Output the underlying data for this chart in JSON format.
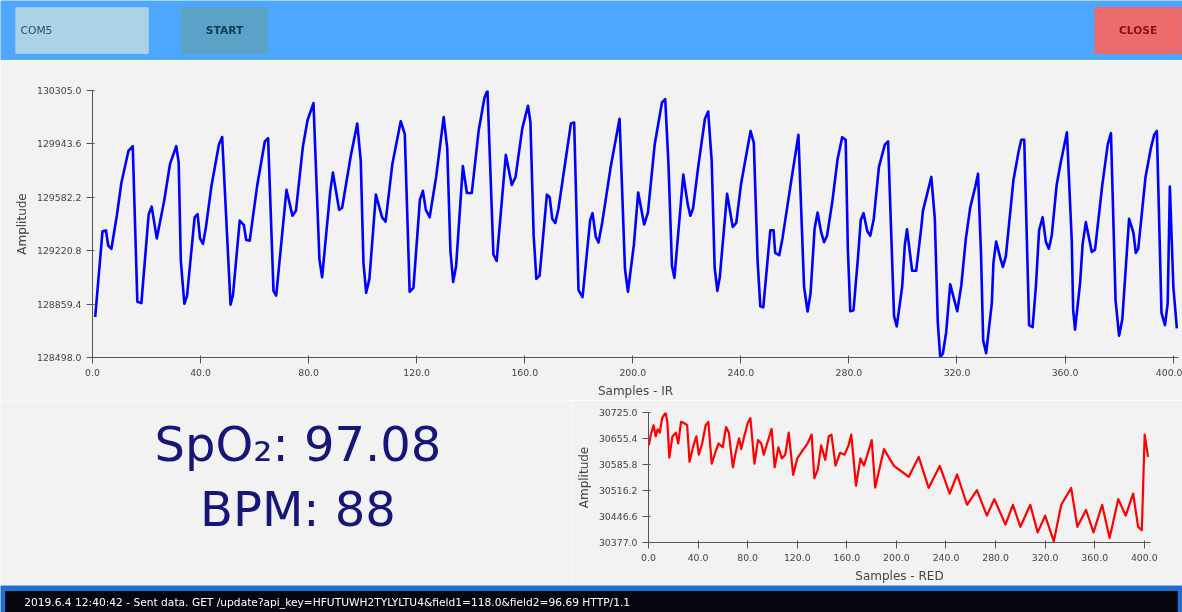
{
  "chart_data": [
    {
      "type": "other",
      "annotations": [
        "COM5",
        "START",
        "CLOSE"
      ]
    },
    {
      "type": "line",
      "xlabel": "Samples - IR",
      "ylabel": "Amplitude",
      "line_style": "solid",
      "xlim": [
        0,
        402
      ],
      "ylim": [
        128498,
        130305
      ],
      "xticks": [
        {
          "value": 0,
          "label": "0.0"
        },
        {
          "value": 40,
          "label": "40.0"
        },
        {
          "value": 80,
          "label": "80.0"
        },
        {
          "value": 120,
          "label": "120.0"
        },
        {
          "value": 160,
          "label": "160.0"
        },
        {
          "value": 200,
          "label": "200.0"
        },
        {
          "value": 240,
          "label": "240.0"
        },
        {
          "value": 280,
          "label": "280.0"
        },
        {
          "value": 320,
          "label": "320.0"
        },
        {
          "value": 360,
          "label": "360.0"
        },
        {
          "value": 400,
          "label": "400.0"
        }
      ],
      "yticks": [
        {
          "value": 128498,
          "label": "128498.0"
        },
        {
          "value": 128859.4,
          "label": "128859.4"
        },
        {
          "value": 129220.8,
          "label": "129220.8"
        },
        {
          "value": 129582.2,
          "label": "129582.2"
        },
        {
          "value": 129943.6,
          "label": "129943.6"
        },
        {
          "value": 130305,
          "label": "130305.0"
        }
      ],
      "series": [
        {
          "color": "#0000ff",
          "x": [
            1,
            3.7,
            5,
            5.8,
            7,
            9,
            10.7,
            13.3,
            14.9,
            16.6,
            18.1,
            20.8,
            21.9,
            23.8,
            26.5,
            28.7,
            31,
            31.9,
            32.7,
            34,
            35,
            37.8,
            38.9,
            39.8,
            40.9,
            42,
            44,
            46.8,
            48,
            51.1,
            52,
            54.5,
            56,
            56.9,
            58.2,
            61,
            63.8,
            65,
            67,
            68,
            71.8,
            74,
            75.3,
            77.9,
            79.6,
            81.8,
            84,
            85,
            88,
            89,
            91.3,
            92.4,
            95.6,
            98,
            99.3,
            100.3,
            101.3,
            102.5,
            104.9,
            107.2,
            108.5,
            111,
            114.1,
            115.6,
            117.4,
            118.8,
            121.2,
            122.3,
            123.4,
            124.8,
            127.2,
            130,
            131.3,
            132.5,
            133.5,
            134.6,
            137.1,
            138.6,
            140.4,
            142.9,
            145.1,
            146.2,
            148.4,
            149.6,
            153,
            155.2,
            156.6,
            159.1,
            161.2,
            162.1,
            163.3,
            164.3,
            165.5,
            168.2,
            169.2,
            170.2,
            171.3,
            172.5,
            177.1,
            178.3,
            179.9,
            181.4,
            184.2,
            185.1,
            186.3,
            187.3,
            188.7,
            191.8,
            195.1,
            197.1,
            198.2,
            200.4,
            202,
            204.2,
            205.6,
            208.1,
            210.8,
            212,
            213.2,
            214.5,
            215.4,
            218.7,
            220.3,
            221.3,
            222.3,
            224.2,
            226.7,
            227.9,
            229.2,
            230.3,
            231.3,
            232.2,
            234.9,
            237,
            238.3,
            240.1,
            243.6,
            244.8,
            246.2,
            247.2,
            248.3,
            250.9,
            252.1,
            252.7,
            254.2,
            255.4,
            258.5,
            261.3,
            263.4,
            264.7,
            265.8,
            267.3,
            268.4,
            269.7,
            270.8,
            271.9,
            273.8,
            275.8,
            277.5,
            278.8,
            279.6,
            280.5,
            281.7,
            283.3,
            284.4,
            285.4,
            286.8,
            287.9,
            289.2,
            291.1,
            293.3,
            294.5,
            296.7,
            297.7,
            299.7,
            300.7,
            301.5,
            303.4,
            304.9,
            306.8,
            307.4,
            310.5,
            311.8,
            312.9,
            313.8,
            314.8,
            316,
            317.5,
            320.1,
            321.6,
            323.3,
            324.9,
            326.8,
            327.8,
            328.9,
            329.7,
            330.8,
            332.9,
            333.5,
            334.5,
            336,
            337,
            338.1,
            340.9,
            342.8,
            343.8,
            344.9,
            346.7,
            348,
            349.2,
            350.4,
            351.7,
            352.9,
            354,
            355.1,
            356.9,
            358.3,
            360.7,
            362.5,
            363,
            363.7,
            365.6,
            366.5,
            367.7,
            369.9,
            371.1,
            373.8,
            375.8,
            377,
            378.7,
            380,
            381.2,
            383.7,
            385.3,
            386.2,
            387.1,
            389.8,
            391.8,
            393,
            394,
            395.7,
            397,
            398,
            398.8,
            400.1,
            401.4
          ],
          "values": [
            128772,
            129352,
            129358,
            129256,
            129234,
            129457,
            129681,
            129896,
            129928,
            128875,
            128866,
            129468,
            129519,
            129304,
            129556,
            129808,
            129928,
            129819,
            129151,
            128862,
            128915,
            129447,
            129468,
            129304,
            129267,
            129381,
            129655,
            129939,
            129990,
            128855,
            128921,
            129425,
            129396,
            129293,
            129289,
            129666,
            129961,
            129983,
            128949,
            128916,
            129633,
            129458,
            129491,
            129928,
            130104,
            130220,
            129162,
            129041,
            129622,
            129749,
            129497,
            129512,
            129862,
            130081,
            129830,
            129140,
            128936,
            129030,
            129600,
            129446,
            129418,
            129808,
            130097,
            130009,
            128943,
            128969,
            129567,
            129626,
            129497,
            129447,
            129720,
            130125,
            129917,
            129217,
            129009,
            129118,
            129793,
            129611,
            129611,
            130027,
            130257,
            130305,
            129195,
            129151,
            129869,
            129666,
            129720,
            130049,
            130202,
            130093,
            129326,
            129030,
            129052,
            129600,
            129585,
            129436,
            129409,
            129506,
            130082,
            130088,
            128954,
            128906,
            129425,
            129475,
            129315,
            129276,
            129414,
            129786,
            130114,
            129098,
            128943,
            129260,
            129615,
            129398,
            129479,
            129939,
            130224,
            130246,
            129808,
            129118,
            129037,
            129736,
            129538,
            129457,
            129506,
            129786,
            130114,
            130163,
            129830,
            129107,
            128949,
            129041,
            129606,
            129381,
            129409,
            129676,
            130031,
            129950,
            129151,
            128844,
            128838,
            129359,
            129359,
            129206,
            129190,
            129304,
            129676,
            130005,
            128975,
            128809,
            128932,
            129370,
            129479,
            129348,
            129278,
            129322,
            129545,
            129840,
            129989,
            129972,
            129238,
            128811,
            128818,
            129162,
            129431,
            129475,
            129352,
            129322,
            129436,
            129786,
            129939,
            129961,
            128779,
            128709,
            128975,
            129260,
            129365,
            129085,
            129085,
            129381,
            129490,
            129720,
            129436,
            128735,
            128498,
            128527,
            128669,
            128993,
            128811,
            128986,
            129304,
            129512,
            129655,
            129742,
            129195,
            128614,
            128527,
            128866,
            129140,
            129282,
            129173,
            129111,
            129184,
            129698,
            129891,
            129972,
            129972,
            128717,
            128704,
            128975,
            129359,
            129447,
            129282,
            129234,
            129326,
            129666,
            129808,
            130022,
            129282,
            128822,
            128687,
            129008,
            129264,
            129414,
            129212,
            129228,
            129666,
            129939,
            130016,
            128887,
            128646,
            128755,
            129436,
            129344,
            129206,
            129234,
            129720,
            129917,
            130005,
            130031,
            128800,
            128717,
            128866,
            129655,
            128975,
            128695
          ]
        }
      ]
    },
    {
      "type": "other",
      "annotations": [
        "SpO₂: 97.08",
        "BPM: 88"
      ]
    },
    {
      "type": "line",
      "xlabel": "Samples - RED",
      "ylabel": "Amplitude",
      "line_style": "solid",
      "xlim": [
        0,
        405
      ],
      "ylim": [
        30377,
        30725
      ],
      "xticks": [
        {
          "value": 0,
          "label": "0.0"
        },
        {
          "value": 40,
          "label": "40.0"
        },
        {
          "value": 80,
          "label": "80.0"
        },
        {
          "value": 120,
          "label": "120.0"
        },
        {
          "value": 160,
          "label": "160.0"
        },
        {
          "value": 200,
          "label": "200.0"
        },
        {
          "value": 240,
          "label": "240.0"
        },
        {
          "value": 280,
          "label": "280.0"
        },
        {
          "value": 320,
          "label": "320.0"
        },
        {
          "value": 360,
          "label": "360.0"
        },
        {
          "value": 400,
          "label": "400.0"
        }
      ],
      "yticks": [
        {
          "value": 30377,
          "label": "30377.0"
        },
        {
          "value": 30446.6,
          "label": "30446.6"
        },
        {
          "value": 30516.2,
          "label": "30516.2"
        },
        {
          "value": 30585.8,
          "label": "30585.8"
        },
        {
          "value": 30655.4,
          "label": "30655.4"
        },
        {
          "value": 30725,
          "label": "30725.0"
        }
      ],
      "series": [
        {
          "color": "#ff0000",
          "x": [
            0.3,
            1.9,
            4.1,
            5.8,
            7.4,
            9.1,
            11,
            13.8,
            15.2,
            16.8,
            19.3,
            22.1,
            24,
            26.2,
            29,
            31.2,
            33.1,
            35.9,
            38.6,
            40.6,
            43.3,
            46.1,
            48.3,
            51,
            54.3,
            56.6,
            59.9,
            62.6,
            64.8,
            68.1,
            70.3,
            73.1,
            74.8,
            77.2,
            80,
            82.2,
            85.5,
            88.3,
            91,
            93,
            95.7,
            99.3,
            101.8,
            104.8,
            107.6,
            110.3,
            113.1,
            116.7,
            120,
            124.1,
            128.3,
            131.6,
            133.8,
            136.6,
            139.3,
            142.6,
            145.4,
            147.6,
            150.9,
            154.5,
            158.1,
            161.4,
            163.6,
            167.4,
            171,
            173.8,
            176.6,
            180.1,
            182.9,
            190,
            198,
            210,
            218,
            226,
            235,
            243,
            249,
            257,
            265,
            273,
            279,
            288,
            294,
            300,
            308,
            314,
            320,
            327,
            333,
            341,
            346,
            353,
            359,
            366,
            372,
            379,
            385,
            391,
            395,
            398,
            400.3,
            403
          ],
          "values": [
            30637,
            30666,
            30691,
            30661,
            30680,
            30671,
            30710,
            30725,
            30700,
            30604,
            30661,
            30671,
            30642,
            30700,
            30696,
            30691,
            30593,
            30632,
            30661,
            30612,
            30642,
            30691,
            30700,
            30588,
            30622,
            30642,
            30632,
            30686,
            30671,
            30578,
            30617,
            30656,
            30627,
            30661,
            30696,
            30710,
            30588,
            30651,
            30642,
            30612,
            30642,
            30681,
            30578,
            30632,
            30602,
            30612,
            30671,
            30558,
            30602,
            30622,
            30642,
            30666,
            30549,
            30573,
            30637,
            30598,
            30661,
            30666,
            30583,
            30617,
            30612,
            30637,
            30666,
            30529,
            30602,
            30583,
            30612,
            30651,
            30524,
            30627,
            30582,
            30553,
            30606,
            30523,
            30582,
            30508,
            30559,
            30478,
            30517,
            30449,
            30493,
            30425,
            30478,
            30419,
            30478,
            30404,
            30449,
            30380,
            30478,
            30523,
            30419,
            30464,
            30404,
            30478,
            30389,
            30493,
            30449,
            30508,
            30419,
            30410,
            30666,
            30606
          ]
        }
      ]
    },
    {
      "type": "other",
      "annotations": [
        "2019.6.4 12:40:42 - Sent data. GET /update?api_key=HFUTUWH2TYLYLTU4&field1=118.0&field2=96.69 HTTP/1.1"
      ]
    }
  ]
}
